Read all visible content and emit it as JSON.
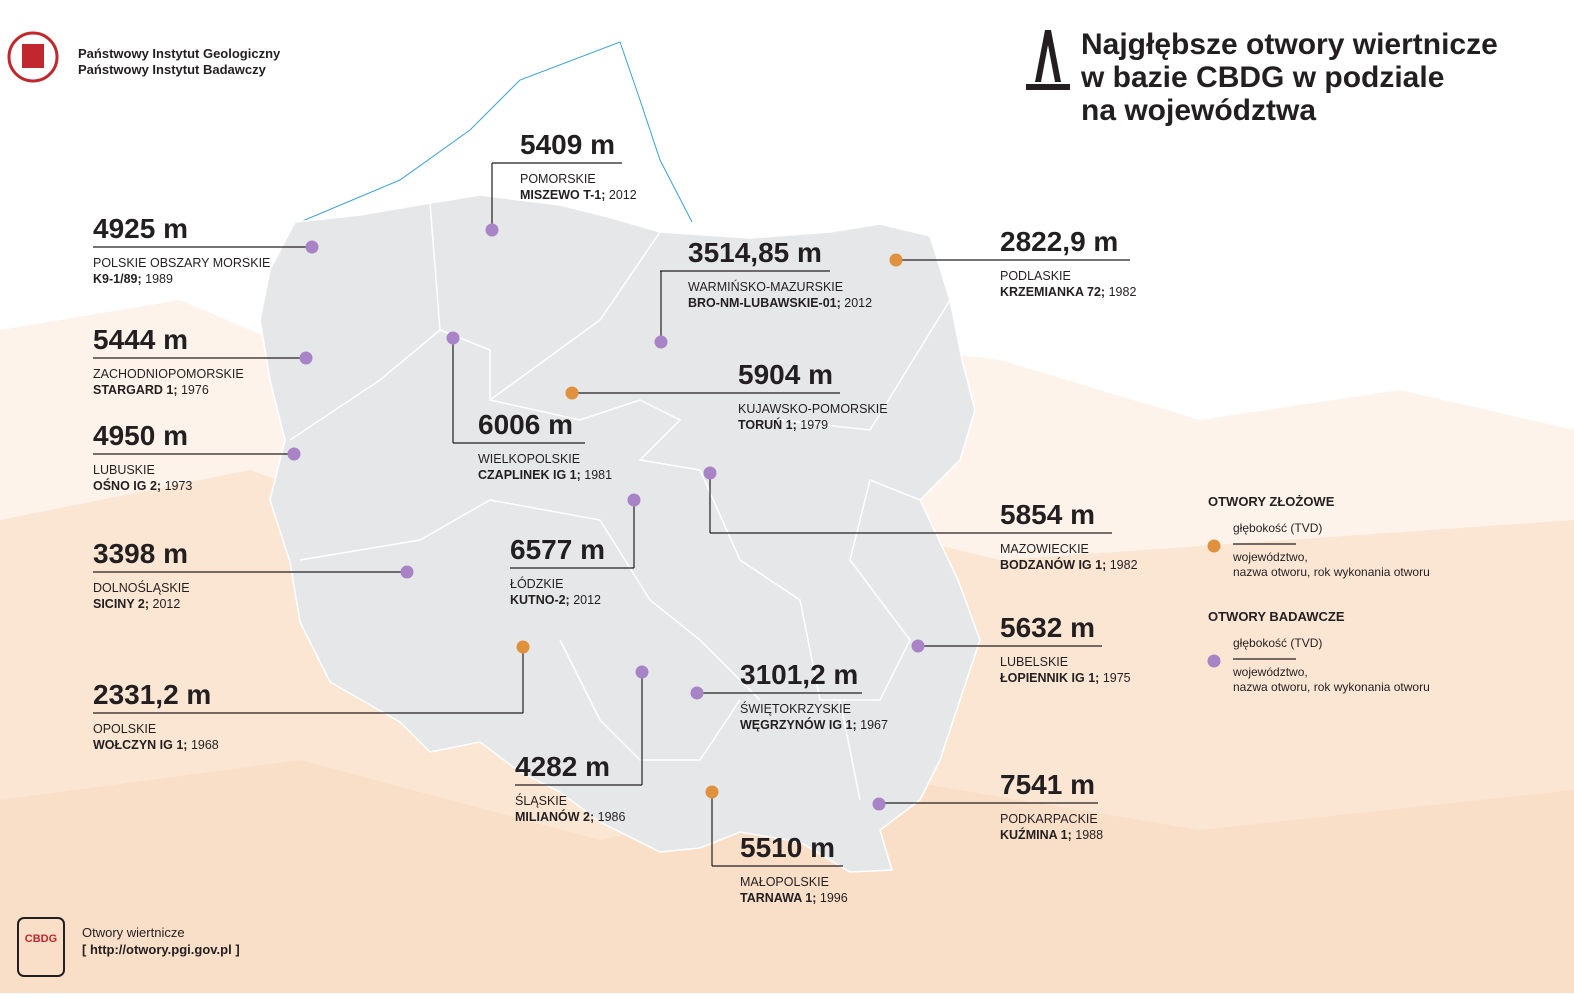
{
  "header": {
    "org_line1": "Państwowy Instytut Geologiczny",
    "org_line2": "Państwowy Instytut Badawczy",
    "title_line1": "Najgłębsze otwory wiertnicze",
    "title_line2": "w bazie CBDG w podziale",
    "title_line3": "na województwa"
  },
  "wells": [
    {
      "depth": "4925 m",
      "region": "POLSKIE OBSZARY MORSKIE",
      "well": "K9-1/89;",
      "year": 1989,
      "color": "#a884c6"
    },
    {
      "depth": "5409 m",
      "region": "POMORSKIE",
      "well": "MISZEWO T-1;",
      "year": 2012,
      "color": "#a884c6"
    },
    {
      "depth": "5444 m",
      "region": "ZACHODNIOPOMORSKIE",
      "well": "STARGARD 1;",
      "year": 1976,
      "color": "#a884c6"
    },
    {
      "depth": "4950 m",
      "region": "LUBUSKIE",
      "well": "OŚNO IG 2;",
      "year": 1973,
      "color": "#a884c6"
    },
    {
      "depth": "3398 m",
      "region": "DOLNOŚLĄSKIE",
      "well": "SICINY 2;",
      "year": 2012,
      "color": "#a884c6"
    },
    {
      "depth": "2331,2 m",
      "region": "OPOLSKIE",
      "well": "WOŁCZYN IG 1;",
      "year": 1968,
      "color": "#e0913e"
    },
    {
      "depth": "6006 m",
      "region": "WIELKOPOLSKIE",
      "well": "CZAPLINEK IG 1;",
      "year": 1981,
      "color": "#a884c6"
    },
    {
      "depth": "6577 m",
      "region": "ŁÓDZKIE",
      "well": "KUTNO-2;",
      "year": 2012,
      "color": "#a884c6"
    },
    {
      "depth": "4282 m",
      "region": "ŚLĄSKIE",
      "well": "MILIANÓW 2;",
      "year": 1986,
      "color": "#a884c6"
    },
    {
      "depth": "5510 m",
      "region": "MAŁOPOLSKIE",
      "well": "TARNAWA 1;",
      "year": 1996,
      "color": "#e0913e"
    },
    {
      "depth": "3101,2 m",
      "region": "ŚWIĘTOKRZYSKIE",
      "well": "WĘGRZYNÓW IG 1;",
      "year": 1967,
      "color": "#a884c6"
    },
    {
      "depth": "7541 m",
      "region": "PODKARPACKIE",
      "well": "KUŹMINA 1;",
      "year": 1988,
      "color": "#a884c6",
      "depth_color": "#c1272d"
    },
    {
      "depth": "5632 m",
      "region": "LUBELSKIE",
      "well": "ŁOPIENNIK IG 1;",
      "year": 1975,
      "color": "#a884c6"
    },
    {
      "depth": "5854 m",
      "region": "MAZOWIECKIE",
      "well": "BODZANÓW IG 1;",
      "year": 1982,
      "color": "#a884c6"
    },
    {
      "depth": "5904 m",
      "region": "KUJAWSKO-POMORSKIE",
      "well": "TORUŃ 1;",
      "year": 1979,
      "color": "#e0913e"
    },
    {
      "depth": "3514,85 m",
      "region": "WARMIŃSKO-MAZURSKIE",
      "well": "BRO-NM-LUBAWSKIE-01;",
      "year": 2012,
      "color": "#a884c6"
    },
    {
      "depth": "2822,9 m",
      "region": "PODLASKIE",
      "well": "KRZEMIANKA 72;",
      "year": 1982,
      "color": "#e0913e"
    }
  ],
  "legend": [
    {
      "title": "OTWORY ZŁOŻOWE",
      "depth_label": "głębokość (TVD)",
      "line1": "województwo,",
      "line2": "nazwa otworu, rok wykonania otworu",
      "color": "#e0913e"
    },
    {
      "title": "OTWORY BADAWCZE",
      "depth_label": "głębokość (TVD)",
      "line1": "województwo,",
      "line2": "nazwa otworu, rok wykonania otworu",
      "color": "#a884c6"
    }
  ],
  "footer": {
    "badge": "CBDG",
    "line1": "Otwory wiertnicze",
    "line2": "[ http://otwory.pgi.gov.pl ]"
  }
}
